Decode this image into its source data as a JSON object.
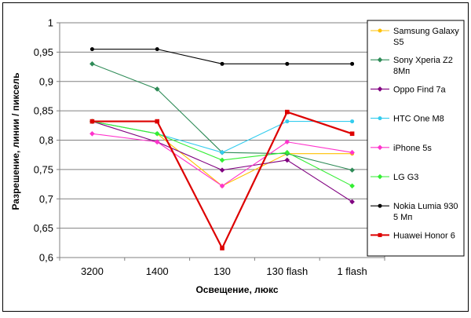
{
  "chart_data": {
    "type": "line",
    "title": "",
    "xlabel": "Освещение, люкс",
    "ylabel": "Разрешение, линии / пиксель",
    "categories": [
      "3200",
      "1400",
      "130",
      "130 flash",
      "1 flash"
    ],
    "ylim": [
      0.6,
      1.0
    ],
    "yticks": [
      "0,6",
      "0,65",
      "0,7",
      "0,75",
      "0,8",
      "0,85",
      "0,9",
      "0,95",
      "1"
    ],
    "grid": "horizontal",
    "legend_position": "right",
    "series": [
      {
        "name": "Samsung Galaxy S5",
        "legend_lines": [
          "Samsung Galaxy",
          "S5"
        ],
        "color": "#ffc000",
        "marker": "circle",
        "values": [
          0.832,
          0.811,
          0.722,
          0.777,
          0.777
        ]
      },
      {
        "name": "Sony Xperia Z2 8Мп",
        "legend_lines": [
          "Sony Xperia Z2",
          "8Мп"
        ],
        "color": "#2e8b57",
        "marker": "diamond",
        "values": [
          0.93,
          0.887,
          0.779,
          0.777,
          0.749
        ]
      },
      {
        "name": "Oppo Find 7a",
        "legend_lines": [
          "Oppo Find 7a"
        ],
        "color": "#800080",
        "marker": "diamond",
        "values": [
          0.832,
          0.797,
          0.749,
          0.766,
          0.695
        ]
      },
      {
        "name": "HTC One M8",
        "legend_lines": [
          "HTC One M8"
        ],
        "color": "#33ccee",
        "marker": "circle",
        "values": [
          0.832,
          0.811,
          0.779,
          0.832,
          0.832
        ]
      },
      {
        "name": "iPhone 5s",
        "legend_lines": [
          "iPhone 5s"
        ],
        "color": "#ff33cc",
        "marker": "diamond",
        "values": [
          0.811,
          0.797,
          0.722,
          0.797,
          0.779
        ]
      },
      {
        "name": "LG G3",
        "legend_lines": [
          "LG G3"
        ],
        "color": "#33ee33",
        "marker": "diamond",
        "values": [
          0.832,
          0.811,
          0.766,
          0.779,
          0.722
        ]
      },
      {
        "name": "Nokia Lumia 930 5 Мп",
        "legend_lines": [
          "Nokia Lumia 930",
          "5 Мп"
        ],
        "color": "#000000",
        "marker": "circle",
        "values": [
          0.955,
          0.955,
          0.93,
          0.93,
          0.93
        ]
      },
      {
        "name": "Huawei Honor 6",
        "legend_lines": [
          "Huawei Honor 6"
        ],
        "color": "#dd0000",
        "marker": "square",
        "values": [
          0.832,
          0.832,
          0.616,
          0.848,
          0.811
        ]
      }
    ]
  }
}
